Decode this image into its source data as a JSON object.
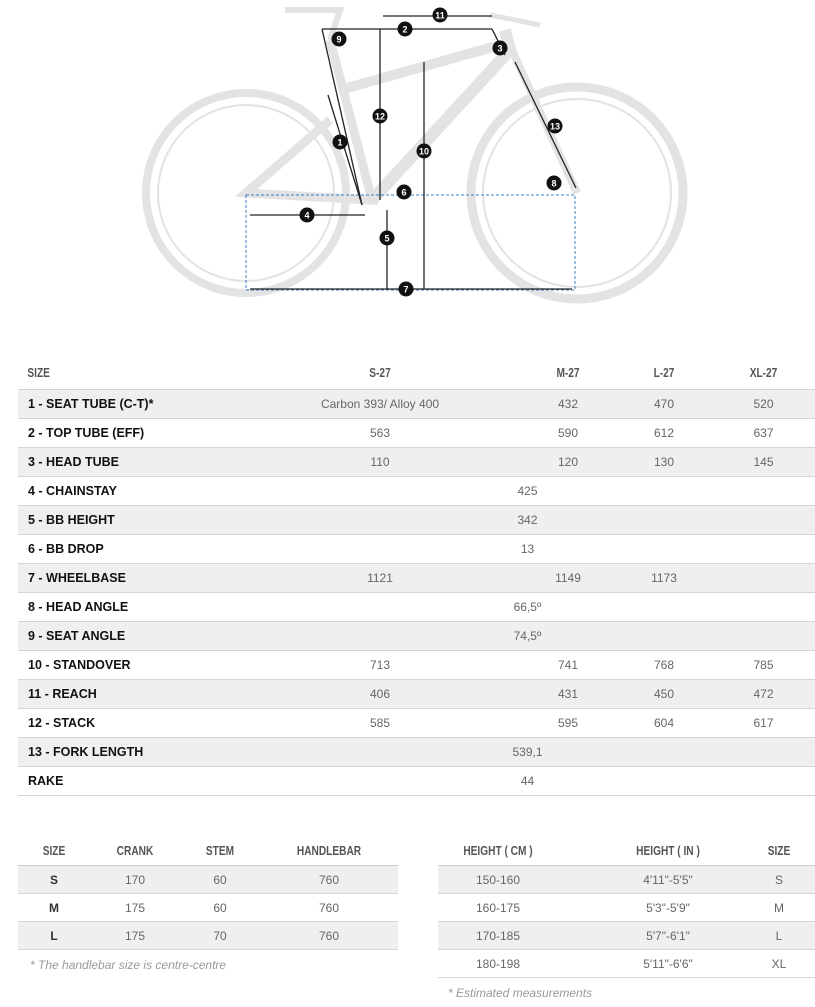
{
  "diagram": {
    "markers": [
      "1",
      "2",
      "3",
      "4",
      "5",
      "6",
      "7",
      "8",
      "9",
      "10",
      "11",
      "12",
      "13"
    ]
  },
  "geometry": {
    "headers": [
      "SIZE",
      "S-27",
      "M-27",
      "L-27",
      "XL-27"
    ],
    "rows": [
      {
        "label": "1 - SEAT TUBE (C-T)*",
        "values": [
          "Carbon 393/ Alloy 400",
          "432",
          "470",
          "520"
        ]
      },
      {
        "label": "2 - TOP TUBE (EFF)",
        "values": [
          "563",
          "590",
          "612",
          "637"
        ]
      },
      {
        "label": "3 - HEAD TUBE",
        "values": [
          "110",
          "120",
          "130",
          "145"
        ]
      },
      {
        "label": "4 - CHAINSTAY",
        "merged": "425"
      },
      {
        "label": "5 - BB HEIGHT",
        "merged": "342"
      },
      {
        "label": "6 - BB DROP",
        "merged": "13"
      },
      {
        "label": "7 - WHEELBASE",
        "values": [
          "1121",
          "1149",
          "1173",
          "-"
        ]
      },
      {
        "label": "8 - HEAD ANGLE",
        "merged": "66,5º"
      },
      {
        "label": "9 - SEAT ANGLE",
        "merged": "74,5º"
      },
      {
        "label": "10 - STANDOVER",
        "values": [
          "713",
          "741",
          "768",
          "785"
        ]
      },
      {
        "label": "11 - REACH",
        "values": [
          "406",
          "431",
          "450",
          "472"
        ]
      },
      {
        "label": "12 - STACK",
        "values": [
          "585",
          "595",
          "604",
          "617"
        ]
      },
      {
        "label": "13 - FORK LENGTH",
        "merged": "539,1"
      },
      {
        "label": "RAKE",
        "merged": "44"
      }
    ]
  },
  "components": {
    "headers": [
      "SIZE",
      "CRANK",
      "STEM",
      "HANDLEBAR"
    ],
    "rows": [
      [
        "S",
        "170",
        "60",
        "760"
      ],
      [
        "M",
        "175",
        "60",
        "760"
      ],
      [
        "L",
        "175",
        "70",
        "760"
      ]
    ],
    "note": "* The handlebar size is centre-centre"
  },
  "sizing": {
    "headers": [
      "HEIGHT ( CM )",
      "HEIGHT ( IN )",
      "SIZE"
    ],
    "rows": [
      [
        "150-160",
        "4'11\"-5'5\"",
        "S"
      ],
      [
        "160-175",
        "5'3\"-5'9\"",
        "M"
      ],
      [
        "170-185",
        "5'7\"-6'1\"",
        "L"
      ],
      [
        "180-198",
        "5'11\"-6'6\"",
        "XL"
      ]
    ],
    "note": "* Estimated measurements"
  }
}
